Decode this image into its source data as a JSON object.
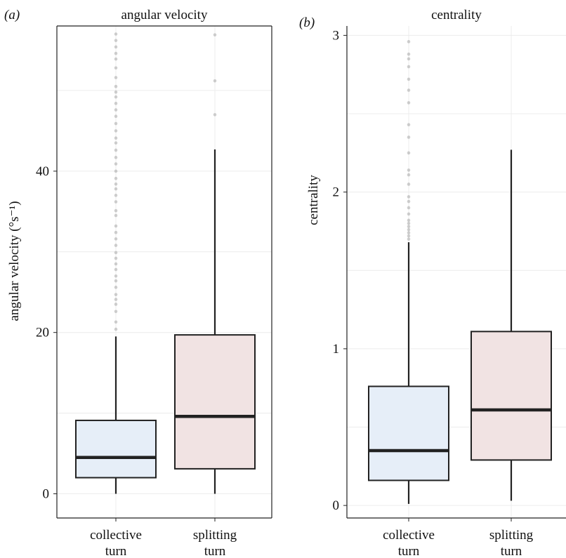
{
  "chart_data": [
    {
      "type": "box",
      "panel_label": "(a)",
      "title": "angular velocity",
      "ylabel": "angular velocity (°s⁻¹)",
      "ylim": [
        -3,
        58
      ],
      "yticks": [
        0,
        20,
        40
      ],
      "grid": true,
      "categories": [
        {
          "label_lines": [
            "collective",
            "turn"
          ],
          "color": "#e6eef8"
        },
        {
          "label_lines": [
            "splitting",
            "turn"
          ],
          "color": "#f1e3e3"
        }
      ],
      "boxes": [
        {
          "whisker_low": 0,
          "q1": 2.0,
          "median": 4.5,
          "q3": 9.1,
          "whisker_high": 19.5,
          "outliers": [
            20.4,
            21.3,
            22.6,
            23.5,
            24.1,
            24.7,
            25.6,
            26.4,
            27.0,
            27.8,
            28.5,
            29.2,
            29.9,
            30.8,
            31.6,
            32.4,
            33.2,
            34.5,
            35.1,
            36.2,
            37.0,
            37.8,
            38.4,
            39.1,
            40.0,
            40.9,
            41.7,
            42.6,
            43.5,
            44.1,
            45.0,
            45.9,
            46.8,
            47.6,
            48.4,
            49.2,
            49.8,
            50.5,
            51.6,
            52.8,
            53.9,
            54.6,
            55.4,
            56.2,
            57.0
          ]
        },
        {
          "whisker_low": 0,
          "q1": 3.1,
          "median": 9.6,
          "q3": 19.7,
          "whisker_high": 42.7,
          "outliers": [
            47.0,
            51.2,
            56.9
          ]
        }
      ]
    },
    {
      "type": "box",
      "panel_label": "(b)",
      "title": "centrality",
      "ylabel": "centrality",
      "ylim": [
        -0.08,
        3.06
      ],
      "yticks": [
        0,
        1,
        2,
        3
      ],
      "grid": true,
      "categories": [
        {
          "label_lines": [
            "collective",
            "turn"
          ],
          "color": "#e6eef8"
        },
        {
          "label_lines": [
            "splitting",
            "turn"
          ],
          "color": "#f1e3e3"
        }
      ],
      "boxes": [
        {
          "whisker_low": 0.01,
          "q1": 0.16,
          "median": 0.35,
          "q3": 0.76,
          "whisker_high": 1.68,
          "outliers": [
            1.7,
            1.72,
            1.74,
            1.76,
            1.78,
            1.8,
            1.82,
            1.86,
            1.9,
            1.94,
            1.97,
            2.05,
            2.11,
            2.14,
            2.25,
            2.35,
            2.43,
            2.57,
            2.65,
            2.72,
            2.8,
            2.85,
            2.88,
            2.96
          ]
        },
        {
          "whisker_low": 0.03,
          "q1": 0.29,
          "median": 0.61,
          "q3": 1.11,
          "whisker_high": 2.27,
          "outliers": []
        }
      ]
    }
  ]
}
